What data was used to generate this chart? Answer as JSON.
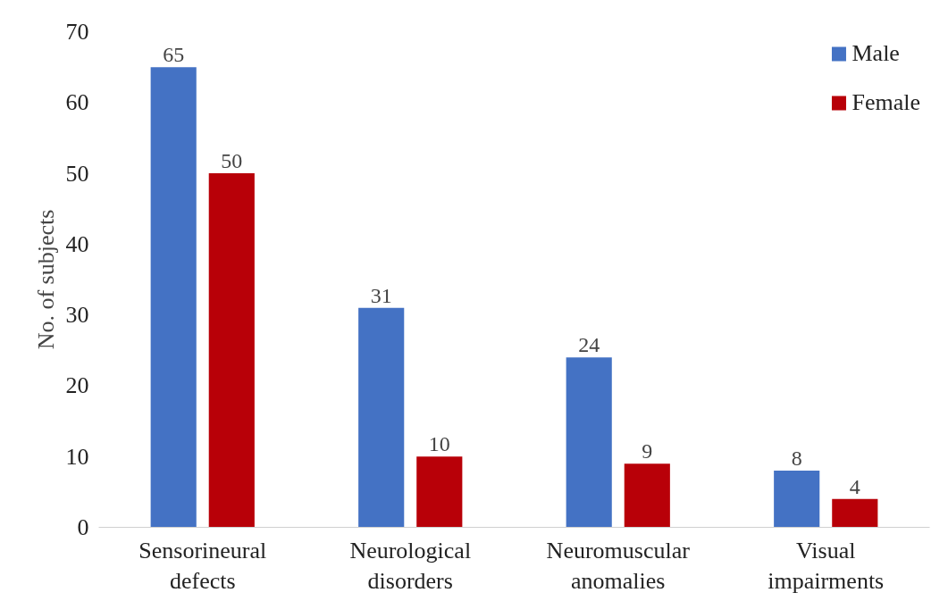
{
  "chart_data": {
    "type": "bar",
    "ylabel": "No. of subjects",
    "categories": [
      "Sensorineural defects",
      "Neurological disorders",
      "Neuromuscular anomalies",
      "Visual impairments"
    ],
    "series": [
      {
        "name": "Male",
        "color": "#4472c4",
        "values": [
          65,
          31,
          24,
          8
        ]
      },
      {
        "name": "Female",
        "color": "#b80008",
        "values": [
          50,
          10,
          9,
          4
        ]
      }
    ],
    "ylim": [
      0,
      70
    ],
    "yticks": [
      0,
      10,
      20,
      30,
      40,
      50,
      60,
      70
    ],
    "data_labels": true,
    "legend": "top right",
    "grid": false
  }
}
